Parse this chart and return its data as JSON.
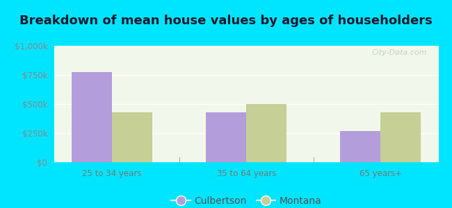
{
  "title": "Breakdown of mean house values by ages of householders",
  "categories": [
    "25 to 34 years",
    "35 to 64 years",
    "65 years+"
  ],
  "culbertson_values": [
    775000,
    430000,
    270000
  ],
  "montana_values": [
    430000,
    500000,
    430000
  ],
  "culbertson_color": "#b39ddb",
  "montana_color": "#c5cf96",
  "ylim": [
    0,
    1000000
  ],
  "yticks": [
    0,
    250000,
    500000,
    750000,
    1000000
  ],
  "ytick_labels": [
    "$0",
    "$250k",
    "$500k",
    "$750k",
    "$1,000k"
  ],
  "background_color": "#00e5ff",
  "plot_bg_color": "#f2f7ec",
  "watermark": "City-Data.com",
  "legend_labels": [
    "Culbertson",
    "Montana"
  ],
  "bar_width": 0.3,
  "title_fontsize": 13,
  "tick_fontsize": 8.5,
  "legend_fontsize": 10
}
